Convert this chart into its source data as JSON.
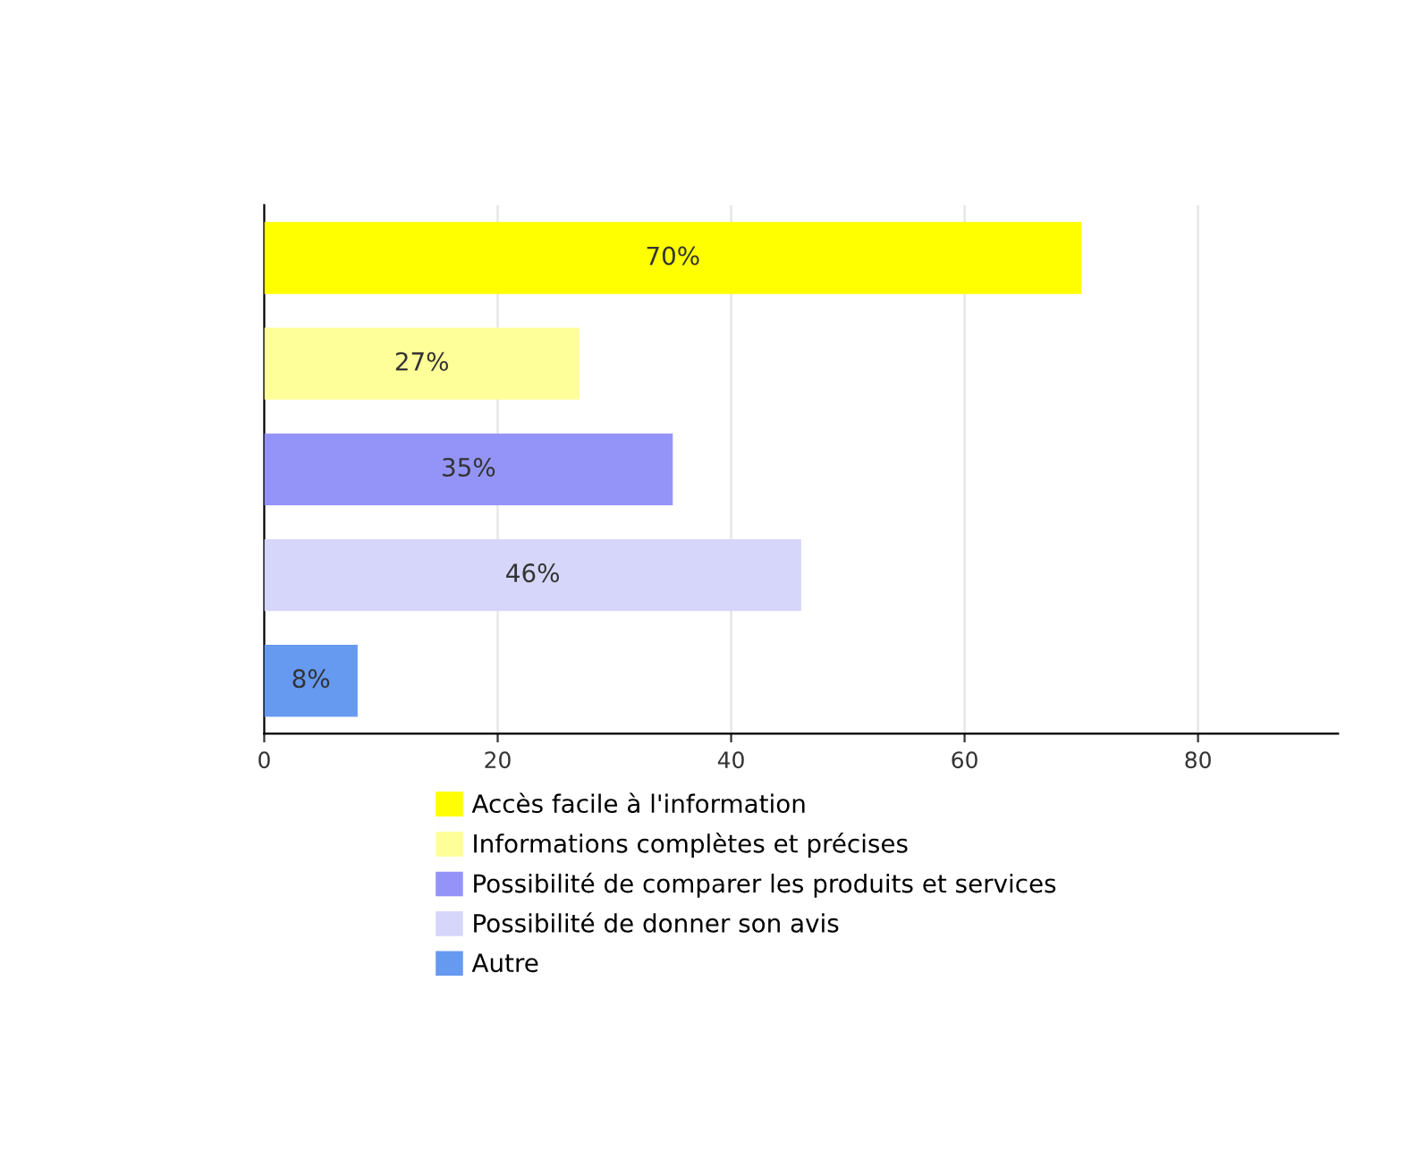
{
  "chart_data": {
    "type": "bar",
    "orientation": "horizontal",
    "categories": [
      null,
      null,
      null,
      null,
      null
    ],
    "series": [
      {
        "name": "Accès facile à l'information",
        "color": "#ffff00",
        "values": [
          70,
          null,
          null,
          null,
          null
        ],
        "value_labels": [
          "70%",
          null,
          null,
          null,
          null
        ]
      },
      {
        "name": "Informations complètes et précises",
        "color": "#ffff99",
        "values": [
          null,
          27,
          null,
          null,
          null
        ],
        "value_labels": [
          null,
          "27%",
          null,
          null,
          null
        ]
      },
      {
        "name": "Possibilité de comparer les produits et services",
        "color": "#9494f8",
        "values": [
          null,
          null,
          35,
          null,
          null
        ],
        "value_labels": [
          null,
          null,
          "35%",
          null,
          null
        ]
      },
      {
        "name": "Possibilité de donner son avis",
        "color": "#d6d6fb",
        "values": [
          null,
          null,
          null,
          46,
          null
        ],
        "value_labels": [
          null,
          null,
          null,
          "46%",
          null
        ]
      },
      {
        "name": "Autre",
        "color": "#6699f0",
        "values": [
          null,
          null,
          null,
          null,
          8
        ],
        "value_labels": [
          null,
          null,
          null,
          null,
          "8%"
        ]
      }
    ],
    "xlim": [
      0,
      92
    ],
    "xticks": [
      0,
      20,
      40,
      60,
      80
    ],
    "grid": "x",
    "legend": "bottom"
  }
}
